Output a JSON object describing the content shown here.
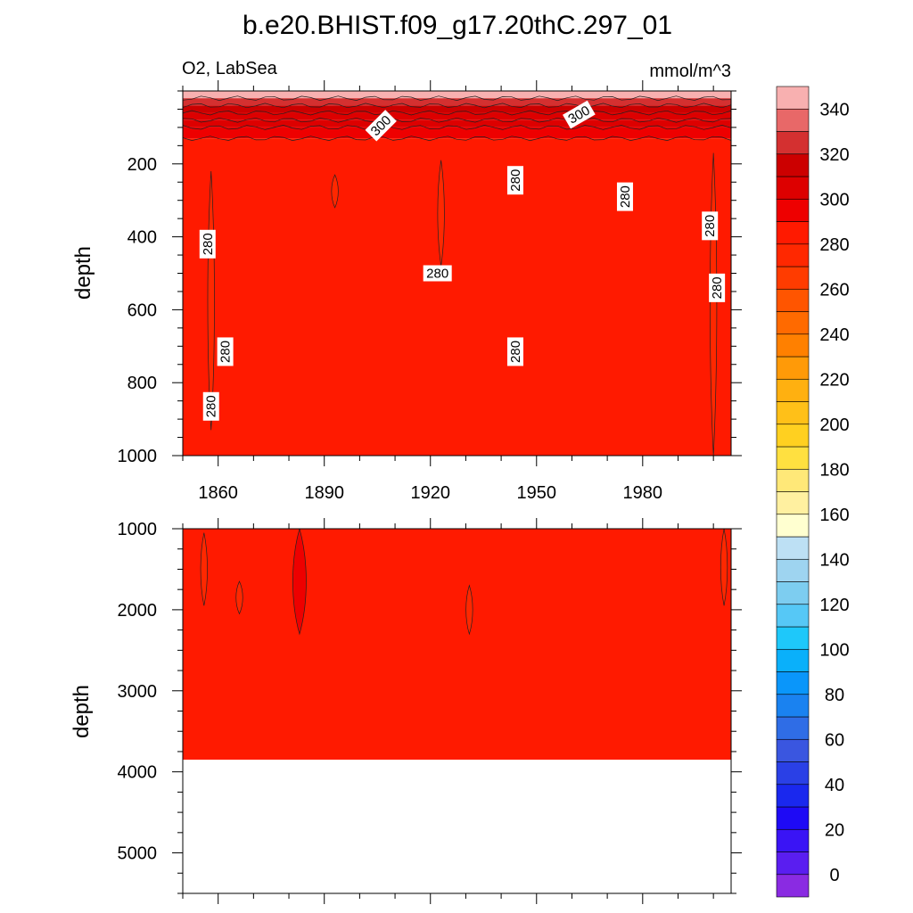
{
  "title": "b.e20.BHIST.f09_g17.20thC.297_01",
  "chart_data": {
    "type": "heatmap",
    "variable": "O2, LabSea",
    "units": "mmol/m^3",
    "xlim": [
      1850,
      2005
    ],
    "x_ticks": [
      1860,
      1890,
      1920,
      1950,
      1980
    ],
    "panels": [
      {
        "name": "upper",
        "ylabel": "depth",
        "ylim": [
          0,
          1000
        ],
        "y_reversed": true,
        "y_ticks": [
          200,
          400,
          600,
          800,
          1000
        ],
        "bands": [
          {
            "depth": [
              0,
              20
            ],
            "value": 345
          },
          {
            "depth": [
              20,
              40
            ],
            "value": 320
          },
          {
            "depth": [
              40,
              60
            ],
            "value": 310
          },
          {
            "depth": [
              60,
              80
            ],
            "value": 305
          },
          {
            "depth": [
              80,
              100
            ],
            "value": 300
          },
          {
            "depth": [
              100,
              130
            ],
            "value": 295
          },
          {
            "depth": [
              130,
              1000
            ],
            "value": 285
          }
        ],
        "contour_labels": [
          {
            "year": 1906,
            "depth": 95,
            "text": "300",
            "angle": -45
          },
          {
            "year": 1962,
            "depth": 65,
            "text": "300",
            "angle": -30
          },
          {
            "year": 1857,
            "depth": 420,
            "text": "280",
            "angle": -90
          },
          {
            "year": 1862,
            "depth": 715,
            "text": "280",
            "angle": -90
          },
          {
            "year": 1858,
            "depth": 865,
            "text": "280",
            "angle": -90
          },
          {
            "year": 1922,
            "depth": 500,
            "text": "280",
            "angle": 0
          },
          {
            "year": 1944,
            "depth": 245,
            "text": "280",
            "angle": -90
          },
          {
            "year": 1944,
            "depth": 715,
            "text": "280",
            "angle": -90
          },
          {
            "year": 1975,
            "depth": 290,
            "text": "280",
            "angle": -90
          },
          {
            "year": 1999,
            "depth": 370,
            "text": "280",
            "angle": -90
          },
          {
            "year": 2001,
            "depth": 540,
            "text": "280",
            "angle": -90
          }
        ],
        "lower_value_patches": [
          {
            "year_center": 1858,
            "depth": [
              220,
              930
            ],
            "value": 275
          },
          {
            "year_center": 1923,
            "depth": [
              190,
              480
            ],
            "value": 275
          },
          {
            "year_center": 1893,
            "depth": [
              230,
              320
            ],
            "value": 275
          },
          {
            "year_center": 2000,
            "depth": [
              170,
              1000
            ],
            "value": 275
          }
        ]
      },
      {
        "name": "lower",
        "ylabel": "depth",
        "ylim": [
          1000,
          5500
        ],
        "y_reversed": true,
        "y_ticks": [
          1000,
          2000,
          3000,
          4000,
          5000
        ],
        "filled_to_depth": 3850,
        "base_value": 285,
        "patches": [
          {
            "year_center": 1856,
            "depth": [
              1050,
              1950
            ],
            "value": 275
          },
          {
            "year_center": 1866,
            "depth": [
              1650,
              2050
            ],
            "value": 275
          },
          {
            "year_center": 1883,
            "depth": [
              1000,
              2300
            ],
            "value": 295
          },
          {
            "year_center": 1931,
            "depth": [
              1700,
              2300
            ],
            "value": 275
          },
          {
            "year_center": 2003,
            "depth": [
              1000,
              1950
            ],
            "value": 275
          }
        ]
      }
    ],
    "colorbar": {
      "labels": [
        0,
        20,
        40,
        60,
        80,
        100,
        120,
        140,
        160,
        180,
        200,
        220,
        240,
        260,
        280,
        300,
        320,
        340
      ],
      "levels": [
        -10,
        0,
        10,
        20,
        30,
        40,
        50,
        60,
        70,
        80,
        90,
        100,
        110,
        120,
        130,
        140,
        150,
        160,
        170,
        180,
        190,
        200,
        210,
        220,
        230,
        240,
        250,
        260,
        270,
        280,
        290,
        300,
        310,
        320,
        330,
        340,
        350,
        360
      ],
      "colors": [
        "#8a2be2",
        "#5a1ef0",
        "#3a14f5",
        "#1e0af5",
        "#1a28ee",
        "#2a40e6",
        "#3a56e0",
        "#2f6de6",
        "#1a82f0",
        "#0a96fa",
        "#0ab0fa",
        "#1ec8fa",
        "#56c8f6",
        "#7dcdf0",
        "#9ed4f0",
        "#bde0f4",
        "#ffffd0",
        "#fff0a0",
        "#ffe878",
        "#ffe040",
        "#ffd020",
        "#ffc018",
        "#ffb010",
        "#ff9a08",
        "#ff8000",
        "#ff6a00",
        "#ff5500",
        "#ff3c00",
        "#ff2800",
        "#ff1a00",
        "#ee0000",
        "#dd0000",
        "#cc0000",
        "#d43030",
        "#e86868",
        "#f8b0b0"
      ]
    }
  }
}
